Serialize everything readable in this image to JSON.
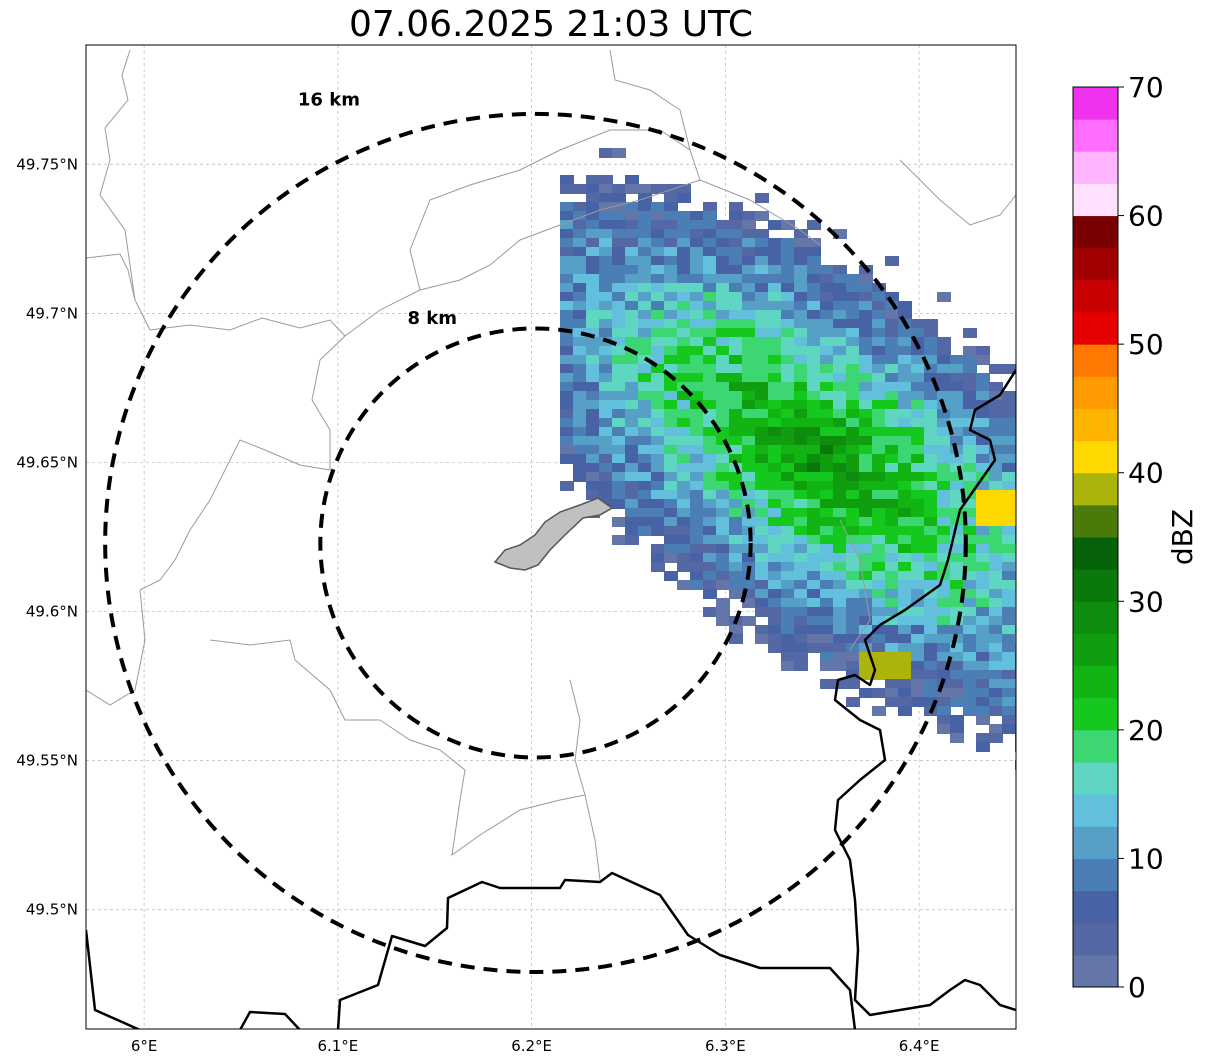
{
  "title": "07.06.2025 21:03 UTC",
  "map": {
    "lon_range": [
      5.97,
      6.45
    ],
    "lat_range": [
      49.46,
      49.79
    ],
    "lon_ticks": [
      {
        "value": 6.0,
        "label": "6°E"
      },
      {
        "value": 6.1,
        "label": "6.1°E"
      },
      {
        "value": 6.2,
        "label": "6.2°E"
      },
      {
        "value": 6.3,
        "label": "6.3°E"
      },
      {
        "value": 6.4,
        "label": "6.4°E"
      }
    ],
    "lat_ticks": [
      {
        "value": 49.5,
        "label": "49.5°N"
      },
      {
        "value": 49.55,
        "label": "49.55°N"
      },
      {
        "value": 49.6,
        "label": "49.6°N"
      },
      {
        "value": 49.65,
        "label": "49.65°N"
      },
      {
        "value": 49.7,
        "label": "49.7°N"
      },
      {
        "value": 49.75,
        "label": "49.75°N"
      }
    ],
    "grid": true,
    "radar_center": {
      "lon": 6.202,
      "lat": 49.623
    },
    "range_rings": [
      {
        "radius_km": 8,
        "label": "8 km"
      },
      {
        "radius_km": 16,
        "label": "16 km"
      }
    ],
    "colors": {
      "border": "#000000",
      "admin": "#9a9a9a",
      "lake": "#c0c0c0",
      "grid": "#b8b8b8"
    }
  },
  "colorbar": {
    "label": "dBZ",
    "min": 0,
    "max": 70,
    "tick_labels": [
      "0",
      "10",
      "20",
      "30",
      "40",
      "50",
      "60",
      "70"
    ],
    "colors": [
      "#6476a8",
      "#5468a6",
      "#4862a6",
      "#4a7eb4",
      "#56a0c8",
      "#62c0dc",
      "#5ed6c2",
      "#3cd672",
      "#14c81e",
      "#12b414",
      "#109e10",
      "#0e8c0e",
      "#0a780a",
      "#06620a",
      "#4a7a0a",
      "#aab40a",
      "#ffd800",
      "#ffb400",
      "#ff9a00",
      "#ff7800",
      "#e60000",
      "#c80000",
      "#a00000",
      "#780000",
      "#ffe0ff",
      "#ffb4ff",
      "#ff6eff",
      "#ee32ee"
    ]
  }
}
